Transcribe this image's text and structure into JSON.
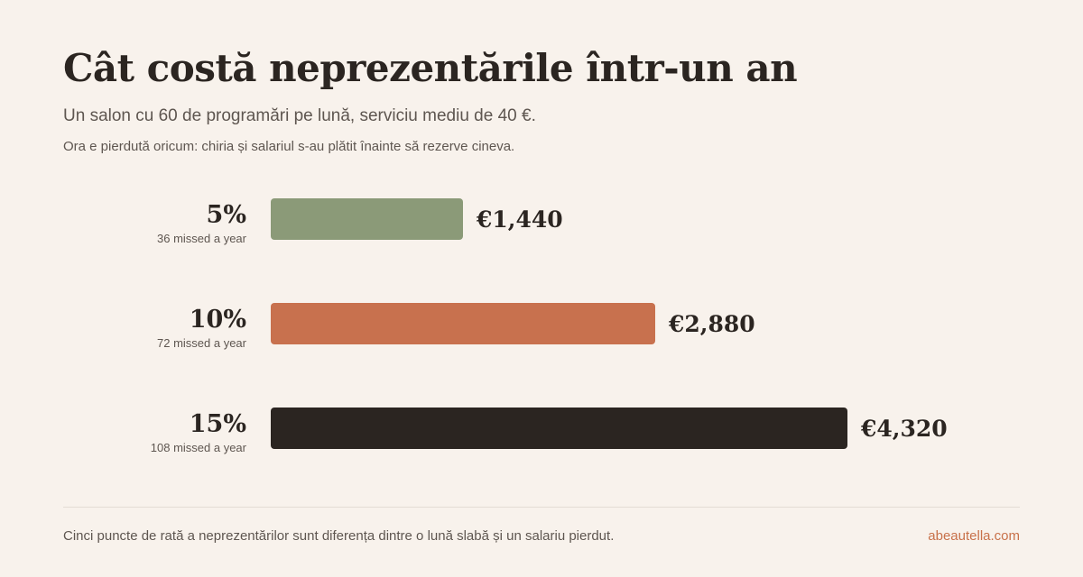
{
  "header": {
    "title": "Cât costă neprezentările într-un an",
    "subtitle": "Un salon cu 60 de programări pe lună, serviciu mediu de 40 €.",
    "note": "Ora e pierdută oricum: chiria și salariul s-au plătit înainte să rezerve cineva."
  },
  "chart_data": {
    "type": "bar",
    "orientation": "horizontal",
    "categories": [
      "5%",
      "10%",
      "15%"
    ],
    "sublabels": [
      "36 missed a year",
      "72 missed a year",
      "108 missed a year"
    ],
    "values": [
      1440,
      2880,
      4320
    ],
    "value_labels": [
      "€1,440",
      "€2,880",
      "€4,320"
    ],
    "colors": [
      "#8b9a78",
      "#c8714e",
      "#2b2521"
    ],
    "xlim": [
      0,
      4320
    ],
    "grid": false,
    "legend": "none"
  },
  "footer": {
    "text": "Cinci puncte de rată a neprezentărilor sunt diferența dintre o lună slabă și un salariu pierdut.",
    "link": "abeautella.com"
  },
  "colors": {
    "background": "#f8f2ec",
    "text": "#2b2521",
    "muted": "#5e5650",
    "accent": "#c8714a"
  }
}
